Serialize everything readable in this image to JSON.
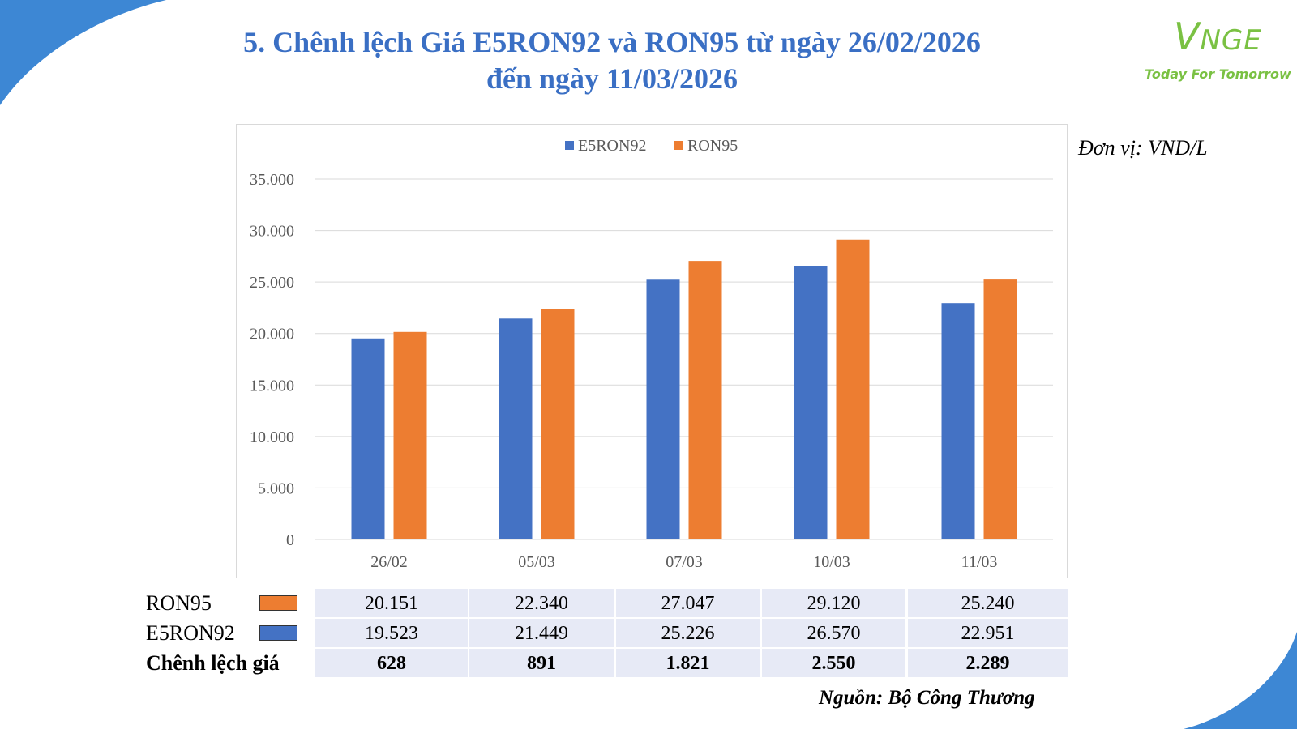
{
  "title": {
    "line1": "5. Chênh lệch Giá E5RON92 và RON95 từ ngày 26/02/2026",
    "line2": "đến ngày 11/03/2026"
  },
  "logo": {
    "mark_v": "V",
    "mark_rest": "NGE",
    "tagline": "Today For Tomorrow"
  },
  "unit_note": "Đơn vị: VND/L",
  "source_note": "Nguồn: Bộ Công Thương",
  "colors": {
    "title": "#3a6fc4",
    "e5ron92": "#4472c4",
    "ron95": "#ed7d31",
    "logo_green": "#7ac143",
    "corner_blue": "#3d87d4",
    "table_fill": "#e7eaf6"
  },
  "chart_data": {
    "type": "bar",
    "categories": [
      "26/02",
      "05/03",
      "07/03",
      "10/03",
      "11/03"
    ],
    "series": [
      {
        "name": "E5RON92",
        "values": [
          19523,
          21449,
          25226,
          26570,
          22951
        ]
      },
      {
        "name": "RON95",
        "values": [
          20151,
          22340,
          27047,
          29120,
          25240
        ]
      }
    ],
    "ylim": [
      0,
      35000
    ],
    "yticks": [
      "0",
      "5.000",
      "10.000",
      "15.000",
      "20.000",
      "25.000",
      "30.000",
      "35.000"
    ],
    "yticks_values": [
      0,
      5000,
      10000,
      15000,
      20000,
      25000,
      30000,
      35000
    ],
    "legend_position": "top-center",
    "grid": true
  },
  "table": {
    "rows": [
      {
        "label": "RON95",
        "values": [
          "20.151",
          "22.340",
          "27.047",
          "29.120",
          "25.240"
        ]
      },
      {
        "label": "E5RON92",
        "values": [
          "19.523",
          "21.449",
          "25.226",
          "26.570",
          "22.951"
        ]
      },
      {
        "label": "Chênh lệch giá",
        "values": [
          "628",
          "891",
          "1.821",
          "2.550",
          "2.289"
        ]
      }
    ]
  }
}
